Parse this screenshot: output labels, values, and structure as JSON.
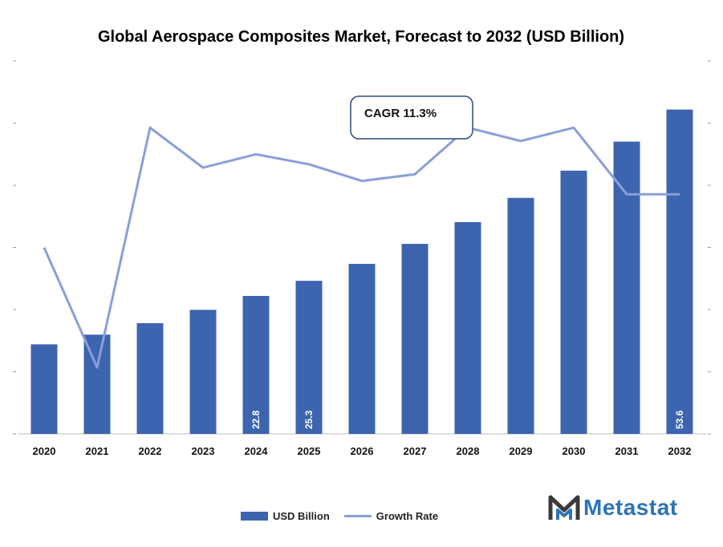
{
  "chart_data": {
    "type": "bar",
    "title": "Global Aerospace Composites Market, Forecast to 2032 (USD Billion)",
    "categories": [
      "2020",
      "2021",
      "2022",
      "2023",
      "2024",
      "2025",
      "2026",
      "2027",
      "2028",
      "2029",
      "2030",
      "2031",
      "2032"
    ],
    "series": [
      {
        "name": "USD Billion",
        "type": "bar",
        "color": "#3d64ae",
        "axis": "left",
        "values": [
          14.8,
          16.4,
          18.3,
          20.5,
          22.8,
          25.3,
          28.1,
          31.4,
          35.0,
          39.0,
          43.5,
          48.3,
          53.6
        ],
        "data_labels": {
          "2024": "22.8",
          "2025": "25.3",
          "2032": "53.6"
        }
      },
      {
        "name": "Growth Rate",
        "type": "line",
        "color": "#8a9fd8",
        "axis": "right",
        "values": [
          9.8,
          8.0,
          11.6,
          11.0,
          11.2,
          11.05,
          10.8,
          10.9,
          11.6,
          11.4,
          11.6,
          10.6,
          10.6
        ]
      }
    ],
    "ylim": [
      0,
      55
    ],
    "y2lim": [
      7.0,
      12.0
    ],
    "grid": false,
    "legend": "bottom",
    "annotation": "CAGR 11.3%"
  },
  "legend": {
    "bar_label": "USD Billion",
    "line_label": "Growth Rate"
  },
  "brand": {
    "name": "Metastat"
  }
}
